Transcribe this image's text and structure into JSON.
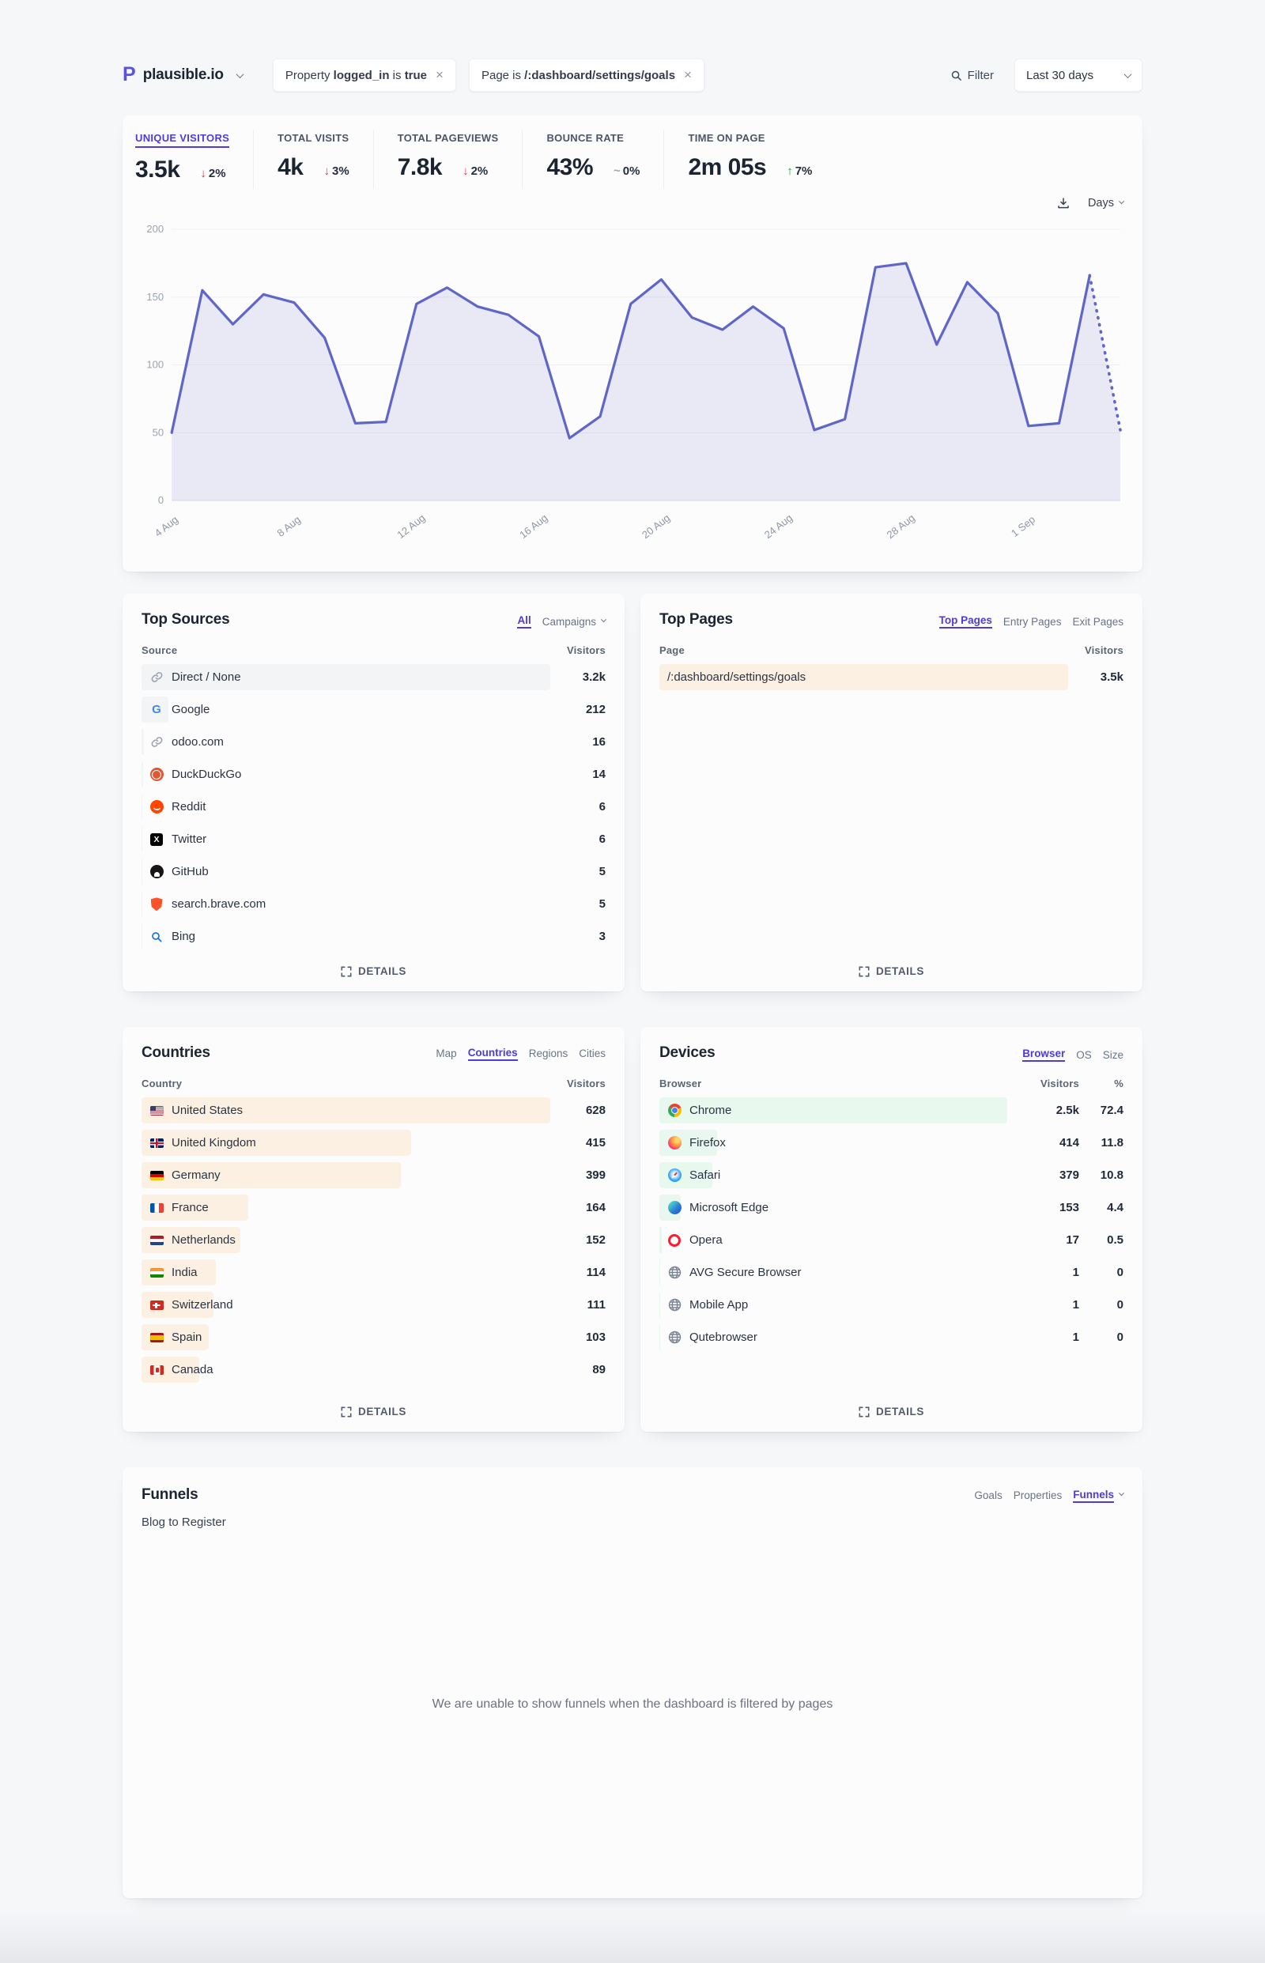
{
  "header": {
    "site": "plausible.io",
    "filter_pills": [
      {
        "text_parts": [
          "Property ",
          "logged_in",
          " is ",
          "true"
        ],
        "bold_indices": [
          1,
          3
        ]
      },
      {
        "text_parts": [
          "Page is ",
          "/:dashboard/settings/goals"
        ],
        "bold_indices": [
          1
        ]
      }
    ],
    "filter_label": "Filter",
    "date_range": "Last 30 days"
  },
  "metrics": [
    {
      "label": "UNIQUE VISITORS",
      "value": "3.5k",
      "delta": "2%",
      "direction": "down",
      "active": true
    },
    {
      "label": "TOTAL VISITS",
      "value": "4k",
      "delta": "3%",
      "direction": "down",
      "active": false
    },
    {
      "label": "TOTAL PAGEVIEWS",
      "value": "7.8k",
      "delta": "2%",
      "direction": "down",
      "active": false
    },
    {
      "label": "BOUNCE RATE",
      "value": "43%",
      "delta": "0%",
      "direction": "flat",
      "active": false
    },
    {
      "label": "TIME ON PAGE",
      "value": "2m 05s",
      "delta": "7%",
      "direction": "up",
      "active": false
    }
  ],
  "chart_data": {
    "type": "area",
    "title": "Unique visitors by day",
    "interval_label": "Days",
    "line_color": "#5f66c7",
    "fill_color": "rgba(95,102,199,0.12)",
    "ylim": [
      0,
      200
    ],
    "yticks": [
      0,
      50,
      100,
      150,
      200
    ],
    "x": [
      "4 Aug",
      "5 Aug",
      "6 Aug",
      "7 Aug",
      "8 Aug",
      "9 Aug",
      "10 Aug",
      "11 Aug",
      "12 Aug",
      "13 Aug",
      "14 Aug",
      "15 Aug",
      "16 Aug",
      "17 Aug",
      "18 Aug",
      "19 Aug",
      "20 Aug",
      "21 Aug",
      "22 Aug",
      "23 Aug",
      "24 Aug",
      "25 Aug",
      "26 Aug",
      "27 Aug",
      "28 Aug",
      "29 Aug",
      "30 Aug",
      "31 Aug",
      "1 Sep",
      "2 Sep",
      "3 Sep",
      "4 Sep"
    ],
    "values": [
      50,
      155,
      130,
      152,
      146,
      120,
      57,
      58,
      145,
      157,
      143,
      137,
      121,
      46,
      62,
      145,
      163,
      135,
      126,
      143,
      127,
      52,
      60,
      172,
      175,
      115,
      161,
      138,
      55,
      57,
      166,
      52
    ],
    "dashed_from": 30,
    "tick_indices": [
      0,
      4,
      8,
      12,
      16,
      20,
      24,
      28
    ],
    "tick_labels": [
      "4 Aug",
      "8 Aug",
      "12 Aug",
      "16 Aug",
      "20 Aug",
      "24 Aug",
      "28 Aug",
      "1 Sep"
    ]
  },
  "panels": {
    "sources": {
      "title": "Top Sources",
      "tabs": [
        {
          "label": "All",
          "active": true
        },
        {
          "label": "Campaigns",
          "active": false,
          "chevron": true
        }
      ],
      "col_label": "Source",
      "value_label": "Visitors",
      "details_label": "DETAILS",
      "bar_color": "#f3f4f6",
      "bar_pct_max": 88,
      "rows": [
        {
          "icon": "link",
          "label": "Direct / None",
          "visitors": "3.2k",
          "value": 3200
        },
        {
          "icon": "google",
          "label": "Google",
          "visitors": "212",
          "value": 212
        },
        {
          "icon": "link",
          "label": "odoo.com",
          "visitors": "16",
          "value": 16
        },
        {
          "icon": "duckduckgo",
          "label": "DuckDuckGo",
          "visitors": "14",
          "value": 14
        },
        {
          "icon": "reddit",
          "label": "Reddit",
          "visitors": "6",
          "value": 6
        },
        {
          "icon": "twitter",
          "label": "Twitter",
          "visitors": "6",
          "value": 6
        },
        {
          "icon": "github",
          "label": "GitHub",
          "visitors": "5",
          "value": 5
        },
        {
          "icon": "brave",
          "label": "search.brave.com",
          "visitors": "5",
          "value": 5
        },
        {
          "icon": "bing",
          "label": "Bing",
          "visitors": "3",
          "value": 3
        }
      ]
    },
    "pages": {
      "title": "Top Pages",
      "tabs": [
        {
          "label": "Top Pages",
          "active": true
        },
        {
          "label": "Entry Pages",
          "active": false
        },
        {
          "label": "Exit Pages",
          "active": false
        }
      ],
      "col_label": "Page",
      "value_label": "Visitors",
      "details_label": "DETAILS",
      "bar_color": "#fcf0e2",
      "bar_pct_max": 88,
      "rows": [
        {
          "icon": null,
          "label": "/:dashboard/settings/goals",
          "visitors": "3.5k",
          "value": 3500
        }
      ]
    },
    "countries": {
      "title": "Countries",
      "tabs": [
        {
          "label": "Map",
          "active": false
        },
        {
          "label": "Countries",
          "active": true
        },
        {
          "label": "Regions",
          "active": false
        },
        {
          "label": "Cities",
          "active": false
        }
      ],
      "col_label": "Country",
      "value_label": "Visitors",
      "details_label": "DETAILS",
      "bar_color": "#fcf0e2",
      "bar_pct_max": 88,
      "rows": [
        {
          "icon": "flag-us",
          "label": "United States",
          "visitors": "628",
          "value": 628
        },
        {
          "icon": "flag-gb",
          "label": "United Kingdom",
          "visitors": "415",
          "value": 415
        },
        {
          "icon": "flag-de",
          "label": "Germany",
          "visitors": "399",
          "value": 399
        },
        {
          "icon": "flag-fr",
          "label": "France",
          "visitors": "164",
          "value": 164
        },
        {
          "icon": "flag-nl",
          "label": "Netherlands",
          "visitors": "152",
          "value": 152
        },
        {
          "icon": "flag-in",
          "label": "India",
          "visitors": "114",
          "value": 114
        },
        {
          "icon": "flag-ch",
          "label": "Switzerland",
          "visitors": "111",
          "value": 111
        },
        {
          "icon": "flag-es",
          "label": "Spain",
          "visitors": "103",
          "value": 103
        },
        {
          "icon": "flag-ca",
          "label": "Canada",
          "visitors": "89",
          "value": 89
        }
      ]
    },
    "devices": {
      "title": "Devices",
      "tabs": [
        {
          "label": "Browser",
          "active": true
        },
        {
          "label": "OS",
          "active": false
        },
        {
          "label": "Size",
          "active": false
        }
      ],
      "col_label": "Browser",
      "value_label": "Visitors",
      "pct_label": "%",
      "details_label": "DETAILS",
      "bar_color": "#e9f8ef",
      "bar_pct_max": 75,
      "rows": [
        {
          "icon": "chrome",
          "label": "Chrome",
          "visitors": "2.5k",
          "value": 2500,
          "pct": "72.4"
        },
        {
          "icon": "firefox",
          "label": "Firefox",
          "visitors": "414",
          "value": 414,
          "pct": "11.8"
        },
        {
          "icon": "safari",
          "label": "Safari",
          "visitors": "379",
          "value": 379,
          "pct": "10.8"
        },
        {
          "icon": "edge",
          "label": "Microsoft Edge",
          "visitors": "153",
          "value": 153,
          "pct": "4.4"
        },
        {
          "icon": "opera",
          "label": "Opera",
          "visitors": "17",
          "value": 17,
          "pct": "0.5"
        },
        {
          "icon": "globe",
          "label": "AVG Secure Browser",
          "visitors": "1",
          "value": 1,
          "pct": "0"
        },
        {
          "icon": "globe",
          "label": "Mobile App",
          "visitors": "1",
          "value": 1,
          "pct": "0"
        },
        {
          "icon": "globe",
          "label": "Qutebrowser",
          "visitors": "1",
          "value": 1,
          "pct": "0"
        }
      ]
    }
  },
  "funnels": {
    "title": "Funnels",
    "subtitle": "Blog to Register",
    "tabs": [
      {
        "label": "Goals",
        "active": false
      },
      {
        "label": "Properties",
        "active": false
      },
      {
        "label": "Funnels",
        "active": true,
        "chevron": true
      }
    ],
    "message": "We are unable to show funnels when the dashboard is filtered by pages"
  }
}
